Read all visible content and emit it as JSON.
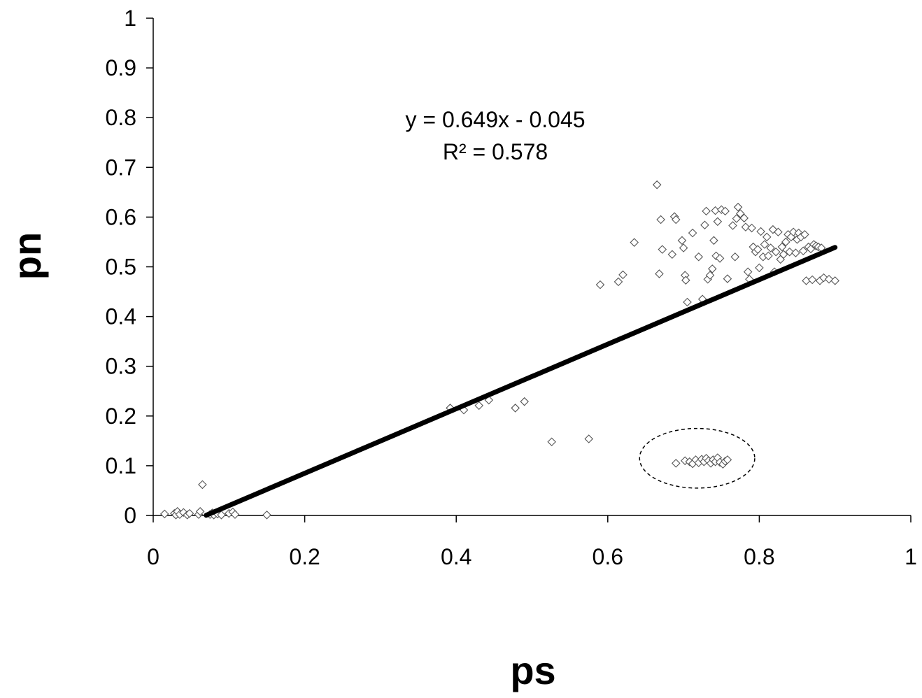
{
  "chart_data": {
    "type": "scatter",
    "title": "",
    "xlabel": "ps",
    "ylabel": "pn",
    "xlim": [
      0,
      1
    ],
    "ylim": [
      0,
      1
    ],
    "x_ticks": [
      0,
      0.2,
      0.4,
      0.6,
      0.8,
      1
    ],
    "x_tick_labels": [
      "0",
      "0.2",
      "0.4",
      "0.6",
      "0.8",
      "1"
    ],
    "y_ticks": [
      0,
      0.1,
      0.2,
      0.3,
      0.4,
      0.5,
      0.6,
      0.7,
      0.8,
      0.9,
      1
    ],
    "y_tick_labels": [
      "0",
      "0.1",
      "0.2",
      "0.3",
      "0.4",
      "0.5",
      "0.6",
      "0.7",
      "0.8",
      "0.9",
      "1"
    ],
    "grid": false,
    "legend": "none",
    "marker": "open-diamond",
    "trendline": {
      "slope": 0.649,
      "intercept": -0.045,
      "x_start": 0.07,
      "x_end": 0.9,
      "equation_label": "y = 0.649x - 0.045",
      "r2_label": "R² = 0.578"
    },
    "highlight": {
      "shape": "dashed-ellipse",
      "center": [
        0.718,
        0.115
      ],
      "radius_x": 0.076,
      "radius_y": 0.06
    },
    "points": [
      [
        0.015,
        0.003
      ],
      [
        0.028,
        0.004
      ],
      [
        0.03,
        0.001
      ],
      [
        0.032,
        0.008
      ],
      [
        0.035,
        0.002
      ],
      [
        0.04,
        0.006
      ],
      [
        0.045,
        0.001
      ],
      [
        0.048,
        0.004
      ],
      [
        0.06,
        0.002
      ],
      [
        0.062,
        0.008
      ],
      [
        0.065,
        0.062
      ],
      [
        0.075,
        0.002
      ],
      [
        0.078,
        0.005
      ],
      [
        0.08,
        0.001
      ],
      [
        0.085,
        0.003
      ],
      [
        0.09,
        0.001
      ],
      [
        0.1,
        0.004
      ],
      [
        0.105,
        0.007
      ],
      [
        0.108,
        0.002
      ],
      [
        0.15,
        0.001
      ],
      [
        0.392,
        0.216
      ],
      [
        0.41,
        0.212
      ],
      [
        0.43,
        0.221
      ],
      [
        0.443,
        0.232
      ],
      [
        0.478,
        0.216
      ],
      [
        0.49,
        0.229
      ],
      [
        0.526,
        0.148
      ],
      [
        0.575,
        0.154
      ],
      [
        0.59,
        0.464
      ],
      [
        0.614,
        0.47
      ],
      [
        0.62,
        0.484
      ],
      [
        0.635,
        0.549
      ],
      [
        0.665,
        0.665
      ],
      [
        0.668,
        0.486
      ],
      [
        0.67,
        0.595
      ],
      [
        0.672,
        0.535
      ],
      [
        0.685,
        0.525
      ],
      [
        0.688,
        0.601
      ],
      [
        0.69,
        0.595
      ],
      [
        0.698,
        0.553
      ],
      [
        0.7,
        0.538
      ],
      [
        0.702,
        0.483
      ],
      [
        0.703,
        0.473
      ],
      [
        0.705,
        0.429
      ],
      [
        0.712,
        0.568
      ],
      [
        0.72,
        0.52
      ],
      [
        0.725,
        0.435
      ],
      [
        0.728,
        0.584
      ],
      [
        0.73,
        0.612
      ],
      [
        0.732,
        0.475
      ],
      [
        0.735,
        0.483
      ],
      [
        0.738,
        0.496
      ],
      [
        0.74,
        0.553
      ],
      [
        0.742,
        0.613
      ],
      [
        0.743,
        0.522
      ],
      [
        0.745,
        0.591
      ],
      [
        0.748,
        0.517
      ],
      [
        0.75,
        0.615
      ],
      [
        0.755,
        0.612
      ],
      [
        0.758,
        0.476
      ],
      [
        0.765,
        0.583
      ],
      [
        0.768,
        0.52
      ],
      [
        0.77,
        0.597
      ],
      [
        0.772,
        0.62
      ],
      [
        0.775,
        0.607
      ],
      [
        0.78,
        0.598
      ],
      [
        0.782,
        0.58
      ],
      [
        0.785,
        0.49
      ],
      [
        0.787,
        0.475
      ],
      [
        0.79,
        0.578
      ],
      [
        0.792,
        0.54
      ],
      [
        0.795,
        0.53
      ],
      [
        0.798,
        0.535
      ],
      [
        0.8,
        0.498
      ],
      [
        0.802,
        0.571
      ],
      [
        0.805,
        0.52
      ],
      [
        0.807,
        0.545
      ],
      [
        0.81,
        0.56
      ],
      [
        0.812,
        0.522
      ],
      [
        0.815,
        0.538
      ],
      [
        0.818,
        0.575
      ],
      [
        0.82,
        0.49
      ],
      [
        0.822,
        0.53
      ],
      [
        0.825,
        0.57
      ],
      [
        0.828,
        0.515
      ],
      [
        0.83,
        0.54
      ],
      [
        0.832,
        0.525
      ],
      [
        0.835,
        0.55
      ],
      [
        0.838,
        0.565
      ],
      [
        0.84,
        0.53
      ],
      [
        0.842,
        0.56
      ],
      [
        0.845,
        0.57
      ],
      [
        0.848,
        0.528
      ],
      [
        0.85,
        0.555
      ],
      [
        0.852,
        0.568
      ],
      [
        0.855,
        0.56
      ],
      [
        0.858,
        0.532
      ],
      [
        0.86,
        0.565
      ],
      [
        0.862,
        0.472
      ],
      [
        0.865,
        0.54
      ],
      [
        0.868,
        0.536
      ],
      [
        0.87,
        0.474
      ],
      [
        0.872,
        0.545
      ],
      [
        0.875,
        0.542
      ],
      [
        0.878,
        0.54
      ],
      [
        0.88,
        0.472
      ],
      [
        0.882,
        0.538
      ],
      [
        0.885,
        0.478
      ],
      [
        0.892,
        0.475
      ],
      [
        0.9,
        0.472
      ],
      [
        0.69,
        0.105
      ],
      [
        0.702,
        0.11
      ],
      [
        0.708,
        0.108
      ],
      [
        0.712,
        0.104
      ],
      [
        0.716,
        0.112
      ],
      [
        0.72,
        0.106
      ],
      [
        0.724,
        0.113
      ],
      [
        0.727,
        0.108
      ],
      [
        0.73,
        0.115
      ],
      [
        0.733,
        0.11
      ],
      [
        0.736,
        0.105
      ],
      [
        0.739,
        0.112
      ],
      [
        0.742,
        0.108
      ],
      [
        0.745,
        0.116
      ],
      [
        0.748,
        0.107
      ],
      [
        0.752,
        0.103
      ],
      [
        0.755,
        0.109
      ],
      [
        0.758,
        0.112
      ]
    ]
  }
}
